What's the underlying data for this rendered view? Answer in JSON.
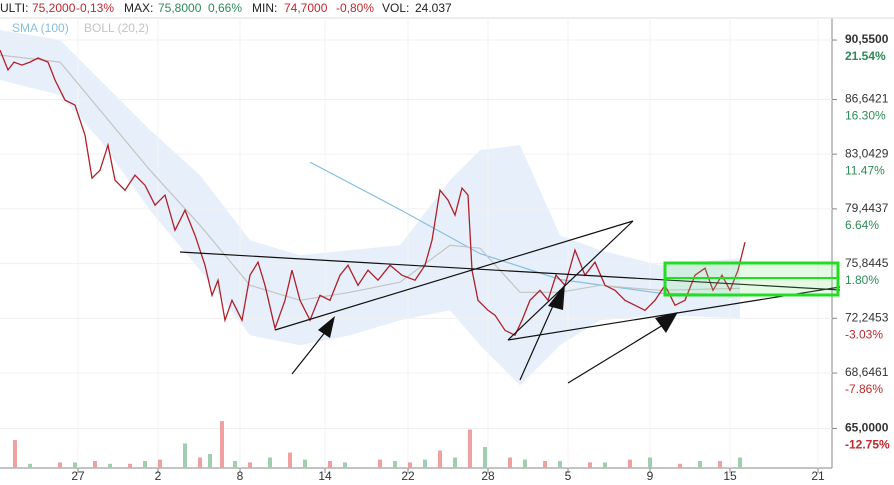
{
  "header": [
    {
      "text": "ULTI:",
      "color": "#222"
    },
    {
      "text": "75,2000",
      "color": "#c0282d"
    },
    {
      "text": "-0,13%",
      "color": "#c0282d"
    },
    {
      "text": "MAX:",
      "color": "#222"
    },
    {
      "text": "75,8000",
      "color": "#2e8b57"
    },
    {
      "text": "0,66%",
      "color": "#2e8b57"
    },
    {
      "text": "MIN:",
      "color": "#222"
    },
    {
      "text": "74,7000",
      "color": "#c0282d"
    },
    {
      "text": "-0,80%",
      "color": "#c0282d"
    },
    {
      "text": "VOL:",
      "color": "#222"
    },
    {
      "text": "24.037",
      "color": "#222"
    }
  ],
  "chart_data": {
    "type": "line",
    "xlim": [
      0,
      832
    ],
    "xticks": [
      {
        "value": 78,
        "label": "27"
      },
      {
        "value": 158,
        "label": "2"
      },
      {
        "value": 240,
        "label": "8"
      },
      {
        "value": 325,
        "label": "14"
      },
      {
        "value": 408,
        "label": "22"
      },
      {
        "value": 488,
        "label": "28"
      },
      {
        "value": 568,
        "label": "5"
      },
      {
        "value": 650,
        "label": "9"
      },
      {
        "value": 730,
        "label": "15"
      },
      {
        "value": 818,
        "label": "21"
      }
    ],
    "ylim": [
      62.4,
      92.0
    ],
    "yticks": [
      {
        "value": 90.55,
        "label": "90,5500",
        "pct": "21.54%",
        "color": "#2e8b57"
      },
      {
        "value": 86.6421,
        "label": "86,6421",
        "pct": "16.30%",
        "color": "#2e8b57"
      },
      {
        "value": 83.0429,
        "label": "83,0429",
        "pct": "11.47%",
        "color": "#2e8b57"
      },
      {
        "value": 79.4437,
        "label": "79,4437",
        "pct": "6.64%",
        "color": "#2e8b57"
      },
      {
        "value": 75.8445,
        "label": "75,8445",
        "pct": "1.80%",
        "color": "#2e8b57"
      },
      {
        "value": 72.2453,
        "label": "72,2453",
        "pct": "-3.03%",
        "color": "#c0282d"
      },
      {
        "value": 68.6461,
        "label": "68,6461",
        "pct": "-7.86%",
        "color": "#c0282d"
      },
      {
        "value": 65.0,
        "label": "65,0000",
        "pct": "-12.75%",
        "color": "#c0282d"
      }
    ],
    "y2lim": [
      0,
      100
    ],
    "grid": true,
    "series": [
      {
        "name": "SMA (100)",
        "color": "#86bfe0",
        "x": [
          310,
          400,
          480,
          560,
          660,
          740
        ],
        "values": [
          82.52,
          79.4,
          76.5,
          74.8,
          73.9,
          73.8
        ]
      },
      {
        "name": "BOLL (20,2)",
        "color": "#c4c4c4",
        "band_color": "#e3edf9",
        "x": [
          0,
          60,
          100,
          150,
          200,
          250,
          300,
          350,
          400,
          450,
          480,
          520,
          560,
          600,
          660,
          740
        ],
        "values": [
          89.56,
          89.1,
          85.94,
          81.99,
          78.37,
          74.42,
          73.43,
          73.96,
          74.62,
          77.05,
          76.86,
          73.96,
          73.96,
          74.42,
          74.09,
          74.22
        ],
        "upper": [
          91.21,
          90.55,
          87.92,
          84.63,
          81.66,
          77.38,
          76.4,
          76.73,
          77.05,
          81.33,
          83.31,
          83.64,
          77.71,
          76.73,
          75.74,
          76.2
        ],
        "lower": [
          87.92,
          86.93,
          83.97,
          79.36,
          75.41,
          71.13,
          70.47,
          71.13,
          72.12,
          72.77,
          70.47,
          67.84,
          70.47,
          72.12,
          72.45,
          72.25
        ]
      },
      {
        "color": "#b0202a",
        "x": [
          0,
          8,
          14,
          22,
          30,
          38,
          48,
          55,
          65,
          75,
          85,
          92,
          100,
          108,
          115,
          125,
          135,
          145,
          155,
          165,
          175,
          185,
          195,
          205,
          212,
          218,
          225,
          232,
          242,
          250,
          258,
          265,
          275,
          285,
          292,
          300,
          310,
          320,
          330,
          340,
          348,
          358,
          368,
          378,
          390,
          402,
          415,
          425,
          432,
          440,
          448,
          455,
          462,
          468,
          472,
          478,
          488,
          495,
          505,
          515,
          522,
          530,
          540,
          548,
          556,
          565,
          575,
          585,
          595,
          605,
          615,
          625,
          635,
          645,
          655,
          665,
          675,
          685,
          695,
          705,
          713,
          722,
          730,
          738,
          745
        ],
        "values": [
          89.89,
          88.58,
          89.1,
          88.9,
          89.1,
          89.37,
          89.1,
          87.92,
          86.6,
          86.27,
          84.3,
          81.46,
          81.99,
          83.64,
          81.33,
          80.67,
          81.66,
          81.0,
          79.69,
          80.35,
          78.04,
          79.36,
          77.71,
          75.74,
          73.76,
          74.75,
          72.12,
          73.43,
          72.12,
          75.08,
          75.94,
          74.42,
          71.59,
          73.43,
          75.41,
          73.43,
          72.12,
          73.76,
          73.43,
          75.08,
          75.74,
          74.42,
          75.41,
          74.75,
          75.74,
          75.08,
          74.75,
          75.74,
          77.38,
          80.67,
          80.02,
          79.03,
          80.81,
          80.35,
          75.41,
          73.43,
          72.77,
          72.45,
          71.46,
          71.13,
          72.12,
          73.43,
          74.09,
          73.43,
          75.08,
          74.42,
          76.73,
          75.08,
          75.94,
          74.42,
          74.09,
          73.43,
          73.1,
          72.77,
          73.43,
          74.42,
          73.1,
          73.43,
          75.08,
          75.54,
          74.09,
          75.08,
          74.09,
          75.41,
          77.25
        ]
      },
      {
        "type": "bar",
        "axis": "y2",
        "color": "#f0a0a0",
        "x": [
          15,
          60,
          95,
          130,
          160,
          200,
          222,
          250,
          290,
          330,
          380,
          410,
          440,
          470,
          510,
          545,
          590,
          630,
          680,
          720
        ],
        "values": [
          40,
          8,
          10,
          6,
          12,
          15,
          67,
          8,
          22,
          10,
          12,
          8,
          25,
          55,
          15,
          10,
          8,
          12,
          6,
          10
        ]
      },
      {
        "type": "bar",
        "axis": "y2",
        "color": "#9fcfb0",
        "x": [
          30,
          75,
          110,
          145,
          185,
          210,
          235,
          270,
          305,
          345,
          395,
          425,
          455,
          485,
          525,
          560,
          605,
          650,
          700,
          740
        ],
        "values": [
          6,
          8,
          6,
          10,
          35,
          20,
          10,
          15,
          12,
          8,
          10,
          12,
          15,
          30,
          12,
          10,
          8,
          15,
          10,
          15
        ]
      }
    ]
  }
}
